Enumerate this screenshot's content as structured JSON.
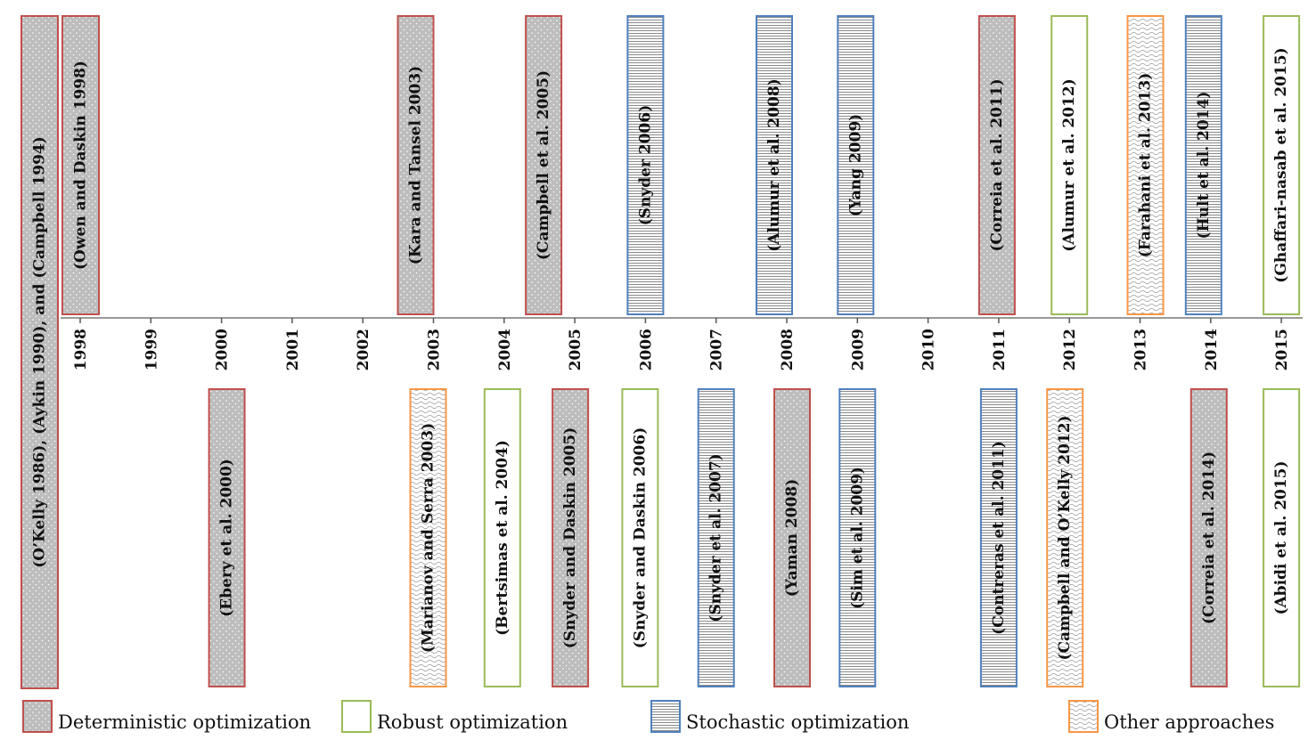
{
  "categories": {
    "deterministic": {
      "label": "Deterministic optimization",
      "stroke": "#c0504d",
      "fill": "#bdbdbd",
      "pattern": "dots"
    },
    "robust": {
      "label": "Robust optimization",
      "stroke": "#9bbb59",
      "fill": "#ffffff",
      "pattern": "none"
    },
    "stochastic": {
      "label": "Stochastic optimization",
      "stroke": "#4f81bd",
      "fill": "#ffffff",
      "pattern": "hlines"
    },
    "other": {
      "label": "Other approaches",
      "stroke": "#f79646",
      "fill": "#ffffff",
      "pattern": "waves"
    }
  },
  "legend_order": [
    "deterministic",
    "robust",
    "stochastic",
    "other"
  ],
  "years": [
    "1998",
    "1999",
    "2000",
    "2001",
    "2002",
    "2003",
    "2004",
    "2005",
    "2006",
    "2007",
    "2008",
    "2009",
    "2010",
    "2011",
    "2012",
    "2013",
    "2014",
    "2015"
  ],
  "references": [
    {
      "label": "(O’Kelly 1986), (Aykin 1990), and (Campbell 1994)",
      "year": "1998",
      "side": "span",
      "category": "deterministic"
    },
    {
      "label": "(Owen and Daskin 1998)",
      "year": "1998",
      "side": "above",
      "category": "deterministic"
    },
    {
      "label": "(Kara and Tansel 2003)",
      "year": "2003",
      "side": "above",
      "category": "deterministic"
    },
    {
      "label": "(Campbell et al. 2005)",
      "year": "2005",
      "side": "above",
      "category": "deterministic"
    },
    {
      "label": "(Snyder 2006)",
      "year": "2006",
      "side": "above",
      "category": "stochastic"
    },
    {
      "label": "(Alumur et al. 2008)",
      "year": "2008",
      "side": "above",
      "category": "stochastic"
    },
    {
      "label": "(Yang 2009)",
      "year": "2009",
      "side": "above",
      "category": "stochastic"
    },
    {
      "label": "(Correia et al. 2011)",
      "year": "2011",
      "side": "above",
      "category": "deterministic"
    },
    {
      "label": "(Alumur et al. 2012)",
      "year": "2012",
      "side": "above",
      "category": "robust"
    },
    {
      "label": "(Farahani et al. 2013)",
      "year": "2013",
      "side": "above",
      "category": "other"
    },
    {
      "label": "(Hult et al.  2014)",
      "year": "2014",
      "side": "above",
      "category": "stochastic"
    },
    {
      "label": "(Ghaffari-nasab et al. 2015)",
      "year": "2015",
      "side": "above",
      "category": "robust"
    },
    {
      "label": "(Ebery et al. 2000)",
      "year": "2000",
      "side": "below",
      "category": "deterministic"
    },
    {
      "label": "(Marianov and Serra 2003)",
      "year": "2003",
      "side": "below",
      "category": "other"
    },
    {
      "label": "(Bertsimas et al. 2004)",
      "year": "2004",
      "side": "below",
      "category": "robust"
    },
    {
      "label": "(Snyder and Daskin 2005)",
      "year": "2005",
      "side": "below",
      "category": "deterministic"
    },
    {
      "label": "(Snyder and Daskin 2006)",
      "year": "2006",
      "side": "below",
      "category": "robust"
    },
    {
      "label": "(Snyder et al. 2007)",
      "year": "2007",
      "side": "below",
      "category": "stochastic"
    },
    {
      "label": "(Yaman 2008)",
      "year": "2008",
      "side": "below",
      "category": "deterministic"
    },
    {
      "label": "(Sim et al. 2009)",
      "year": "2009",
      "side": "below",
      "category": "stochastic"
    },
    {
      "label": "(Contreras et al. 2011)",
      "year": "2011",
      "side": "below",
      "category": "stochastic"
    },
    {
      "label": "(Campbell and O’Kelly 2012)",
      "year": "2012",
      "side": "below",
      "category": "other"
    },
    {
      "label": "(Correia et al. 2014)",
      "year": "2014",
      "side": "below",
      "category": "deterministic"
    },
    {
      "label": "(Abidi et al. 2015)",
      "year": "2015",
      "side": "below",
      "category": "robust"
    }
  ]
}
